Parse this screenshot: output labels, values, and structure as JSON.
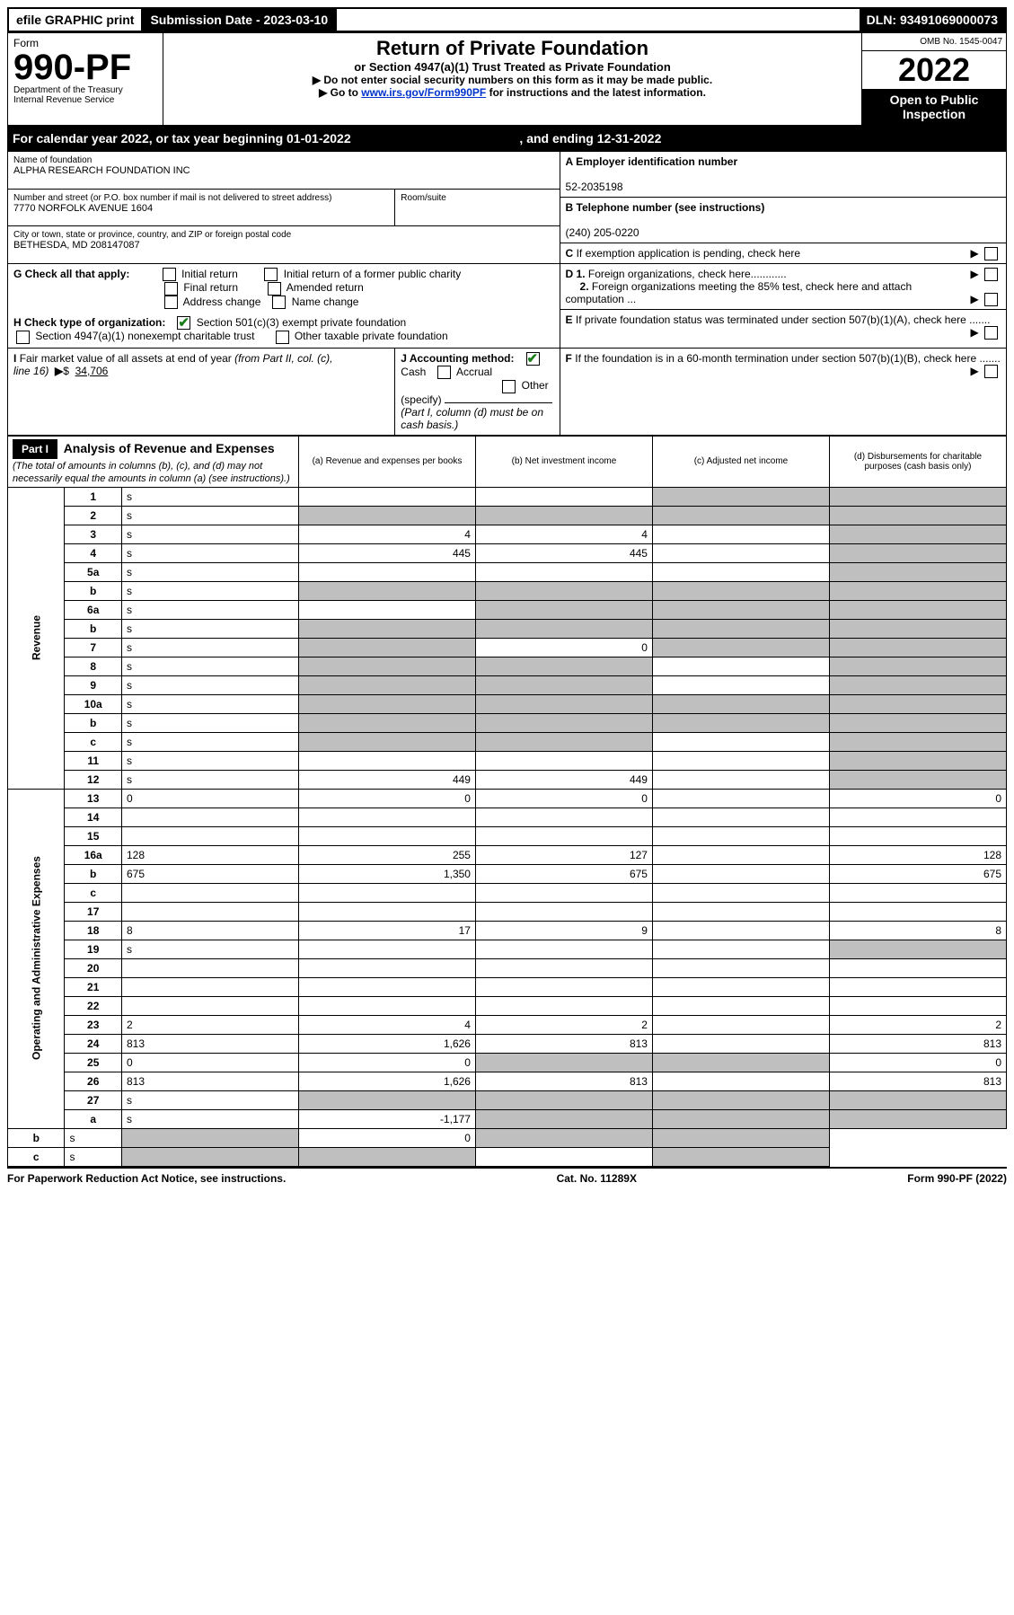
{
  "topbar": {
    "efile": "efile GRAPHIC print",
    "submission_label": "Submission Date - 2023-03-10",
    "dln_label": "DLN: 93491069000073"
  },
  "header": {
    "form_label": "Form",
    "form_number": "990-PF",
    "dept": "Department of the Treasury",
    "irs": "Internal Revenue Service",
    "title": "Return of Private Foundation",
    "subtitle": "or Section 4947(a)(1) Trust Treated as Private Foundation",
    "note1": "▶ Do not enter social security numbers on this form as it may be made public.",
    "note2_pre": "▶ Go to ",
    "note2_link": "www.irs.gov/Form990PF",
    "note2_post": " for instructions and the latest information.",
    "omb": "OMB No. 1545-0047",
    "year": "2022",
    "open": "Open to Public Inspection"
  },
  "cal_year": {
    "pre": "For calendar year 2022, or tax year beginning 01-01-2022",
    "mid": ", and ending 12-31-2022"
  },
  "id": {
    "name_label": "Name of foundation",
    "name": "ALPHA RESEARCH FOUNDATION INC",
    "addr_label": "Number and street (or P.O. box number if mail is not delivered to street address)",
    "addr": "7770 NORFOLK AVENUE 1604",
    "room_label": "Room/suite",
    "city_label": "City or town, state or province, country, and ZIP or foreign postal code",
    "city": "BETHESDA, MD  208147087",
    "a_label": "A Employer identification number",
    "a_val": "52-2035198",
    "b_label": "B Telephone number (see instructions)",
    "b_val": "(240) 205-0220",
    "c_label": "C If exemption application is pending, check here",
    "d1_label": "D 1. Foreign organizations, check here............",
    "d2_label": "2. Foreign organizations meeting the 85% test, check here and attach computation ...",
    "e_label": "E  If private foundation status was terminated under section 507(b)(1)(A), check here .......",
    "f_label": "F  If the foundation is in a 60-month termination under section 507(b)(1)(B), check here ......."
  },
  "g": {
    "label": "G Check all that apply:",
    "opts": [
      "Initial return",
      "Final return",
      "Address change",
      "Initial return of a former public charity",
      "Amended return",
      "Name change"
    ]
  },
  "h": {
    "label": "H Check type of organization:",
    "opt1": "Section 501(c)(3) exempt private foundation",
    "opt2": "Section 4947(a)(1) nonexempt charitable trust",
    "opt3": "Other taxable private foundation"
  },
  "i": {
    "label": "I Fair market value of all assets at end of year (from Part II, col. (c),",
    "line": "line 16)",
    "arrow": "▶$",
    "val": "34,706"
  },
  "j": {
    "label": "J Accounting method:",
    "cash": "Cash",
    "accrual": "Accrual",
    "other": "Other (specify)",
    "note": "(Part I, column (d) must be on cash basis.)"
  },
  "part1": {
    "header": "Part I",
    "title": "Analysis of Revenue and Expenses",
    "title_note": " (The total of amounts in columns (b), (c), and (d) may not necessarily equal the amounts in column (a) (see instructions).)",
    "col_a": "(a)   Revenue and expenses per books",
    "col_b": "(b)   Net investment income",
    "col_c": "(c)   Adjusted net income",
    "col_d": "(d)   Disbursements for charitable purposes (cash basis only)"
  },
  "sections": {
    "revenue": "Revenue",
    "expenses": "Operating and Administrative Expenses"
  },
  "lines": [
    {
      "n": "1",
      "d": "s",
      "a": "",
      "b": "",
      "c": "s"
    },
    {
      "n": "2",
      "d": "s",
      "a": "s",
      "b": "s",
      "c": "s"
    },
    {
      "n": "3",
      "d": "s",
      "a": "4",
      "b": "4",
      "c": ""
    },
    {
      "n": "4",
      "d": "s",
      "a": "445",
      "b": "445",
      "c": ""
    },
    {
      "n": "5a",
      "d": "s",
      "a": "",
      "b": "",
      "c": ""
    },
    {
      "n": "b",
      "d": "s",
      "a": "s",
      "b": "s",
      "c": "s"
    },
    {
      "n": "6a",
      "d": "s",
      "a": "",
      "b": "s",
      "c": "s"
    },
    {
      "n": "b",
      "d": "s",
      "a": "s",
      "b": "s",
      "c": "s"
    },
    {
      "n": "7",
      "d": "s",
      "a": "s",
      "b": "0",
      "c": "s"
    },
    {
      "n": "8",
      "d": "s",
      "a": "s",
      "b": "s",
      "c": ""
    },
    {
      "n": "9",
      "d": "s",
      "a": "s",
      "b": "s",
      "c": ""
    },
    {
      "n": "10a",
      "d": "s",
      "a": "s",
      "b": "s",
      "c": "s"
    },
    {
      "n": "b",
      "d": "s",
      "a": "s",
      "b": "s",
      "c": "s"
    },
    {
      "n": "c",
      "d": "s",
      "a": "s",
      "b": "s",
      "c": ""
    },
    {
      "n": "11",
      "d": "s",
      "a": "",
      "b": "",
      "c": ""
    },
    {
      "n": "12",
      "d": "s",
      "a": "449",
      "b": "449",
      "c": ""
    },
    {
      "n": "13",
      "d": "0",
      "a": "0",
      "b": "0",
      "c": ""
    },
    {
      "n": "14",
      "d": "",
      "a": "",
      "b": "",
      "c": ""
    },
    {
      "n": "15",
      "d": "",
      "a": "",
      "b": "",
      "c": ""
    },
    {
      "n": "16a",
      "d": "128",
      "a": "255",
      "b": "127",
      "c": ""
    },
    {
      "n": "b",
      "d": "675",
      "a": "1,350",
      "b": "675",
      "c": ""
    },
    {
      "n": "c",
      "d": "",
      "a": "",
      "b": "",
      "c": ""
    },
    {
      "n": "17",
      "d": "",
      "a": "",
      "b": "",
      "c": ""
    },
    {
      "n": "18",
      "d": "8",
      "a": "17",
      "b": "9",
      "c": ""
    },
    {
      "n": "19",
      "d": "s",
      "a": "",
      "b": "",
      "c": ""
    },
    {
      "n": "20",
      "d": "",
      "a": "",
      "b": "",
      "c": ""
    },
    {
      "n": "21",
      "d": "",
      "a": "",
      "b": "",
      "c": ""
    },
    {
      "n": "22",
      "d": "",
      "a": "",
      "b": "",
      "c": ""
    },
    {
      "n": "23",
      "d": "2",
      "a": "4",
      "b": "2",
      "c": ""
    },
    {
      "n": "24",
      "d": "813",
      "a": "1,626",
      "b": "813",
      "c": ""
    },
    {
      "n": "25",
      "d": "0",
      "a": "0",
      "b": "s",
      "c": "s"
    },
    {
      "n": "26",
      "d": "813",
      "a": "1,626",
      "b": "813",
      "c": ""
    },
    {
      "n": "27",
      "d": "s",
      "a": "s",
      "b": "s",
      "c": "s"
    },
    {
      "n": "a",
      "d": "s",
      "a": "-1,177",
      "b": "s",
      "c": "s"
    },
    {
      "n": "b",
      "d": "s",
      "a": "s",
      "b": "0",
      "c": "s"
    },
    {
      "n": "c",
      "d": "s",
      "a": "s",
      "b": "s",
      "c": ""
    }
  ],
  "footer": {
    "left": "For Paperwork Reduction Act Notice, see instructions.",
    "mid": "Cat. No. 11289X",
    "right": "Form 990-PF (2022)"
  }
}
